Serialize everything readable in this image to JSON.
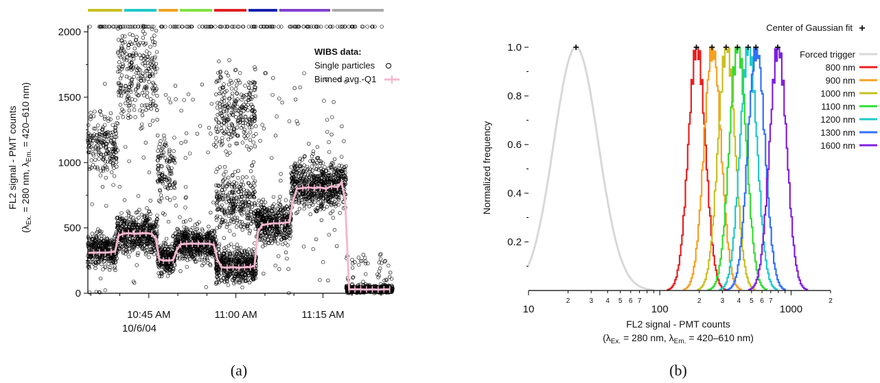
{
  "panel_a": {
    "caption": "(a)",
    "y_label_line1": "FL2 signal - PMT counts",
    "y_label_line2_prefix": "(λ",
    "y_label_sub1": "Ex.",
    "y_label_mid": " = 280 nm, λ",
    "y_label_sub2": "Em.",
    "y_label_suffix": " = 420–610 nm)",
    "legend_title": "WIBS data:",
    "legend_single": "Single particles",
    "legend_binned": "Binned avg.-Q1",
    "x_ticks": [
      "10:45 AM",
      "11:00 AM",
      "11:15 AM"
    ],
    "x_date": "10/6/04",
    "y_ticks": [
      "0",
      "500",
      "1000",
      "1500",
      "2000"
    ],
    "top_bar_colors": [
      "#c8c020",
      "#20c8c8",
      "#f0a020",
      "#80e040",
      "#e02020",
      "#1020b0",
      "#8040d0",
      "#aaaaaa"
    ]
  },
  "panel_b": {
    "caption": "(b)",
    "x_label_line1": "FL2 signal - PMT counts",
    "x_label_line2_prefix": "(λ",
    "x_label_sub1": "Ex.",
    "x_label_mid": " = 280 nm, λ",
    "x_label_sub2": "Em.",
    "x_label_suffix": " = 420–610 nm)",
    "y_label": "Normalized frequency",
    "gauss_label": "Center of Gaussian fit",
    "gauss_marker": "+",
    "y_ticks": [
      "0.2",
      "0.4",
      "0.6",
      "0.8",
      "1.0"
    ],
    "x_major_ticks": [
      "10",
      "100",
      "1000"
    ],
    "x_minor_labels": [
      "2",
      "3",
      "4",
      "5",
      "6",
      "7",
      "2",
      "3",
      "4",
      "5",
      "6",
      "7",
      "2"
    ]
  },
  "chart_data": [
    {
      "type": "scatter",
      "xlabel": "",
      "ylabel": "FL2 signal - PMT counts (λEx. = 280 nm, λEm. = 420–610 nm)",
      "ylim": [
        0,
        2050
      ],
      "x_ticks": [
        "10:45 AM",
        "11:00 AM",
        "11:15 AM"
      ],
      "x_range_minutes": [
        -10.5,
        42
      ],
      "x_reference": "10:45 AM 10/6/04",
      "series": [
        {
          "name": "Single particles",
          "style": "open-circle",
          "segments": [
            {
              "x_start": -10.5,
              "x_end": -5.5,
              "bands": [
                [
                  330,
                  60
                ],
                [
                  1120,
                  110
                ]
              ]
            },
            {
              "x_start": -5.5,
              "x_end": 1.5,
              "bands": [
                [
                  455,
                  70
                ],
                [
                  1700,
                  170
                ]
              ]
            },
            {
              "x_start": 1.5,
              "x_end": 4.5,
              "bands": [
                [
                  260,
                  60
                ],
                [
                  950,
                  110
                ]
              ]
            },
            {
              "x_start": 4.5,
              "x_end": 11.5,
              "bands": [
                [
                  380,
                  60
                ]
              ]
            },
            {
              "x_start": 11.5,
              "x_end": 18.5,
              "bands": [
                [
                  210,
                  60
                ],
                [
                  700,
                  110
                ],
                [
                  1400,
                  170
                ]
              ]
            },
            {
              "x_start": 18.5,
              "x_end": 24.5,
              "bands": [
                [
                  540,
                  70
                ]
              ]
            },
            {
              "x_start": 24.5,
              "x_end": 34,
              "bands": [
                [
                  830,
                  90
                ]
              ]
            },
            {
              "x_start": 34,
              "x_end": 42,
              "bands": [
                [
                  30,
                  15
                ]
              ]
            }
          ]
        },
        {
          "name": "Binned avg.-Q1",
          "color": "#f5b8d0",
          "x": [
            -10.5,
            -9.5,
            -8.5,
            -7.5,
            -6.5,
            -5.8,
            -5.2,
            -4.5,
            -3.5,
            -2.5,
            -1.5,
            -0.5,
            0.5,
            1.2,
            1.8,
            2.5,
            3.5,
            4.2,
            4.8,
            5.5,
            6.5,
            7.5,
            8.5,
            9.5,
            10.5,
            11.2,
            11.8,
            12.5,
            13.5,
            14.5,
            15.5,
            16.5,
            17.5,
            18.2,
            18.8,
            19.5,
            20.5,
            21.5,
            22.5,
            23.5,
            24.2,
            24.8,
            25.5,
            26.5,
            27.5,
            28.5,
            29.5,
            30.5,
            31.5,
            32.5,
            33.2,
            33.8,
            34.5,
            35.5,
            36.5,
            37.5,
            38.5,
            39.5,
            40.5,
            41.5
          ],
          "y": [
            310,
            310,
            312,
            310,
            315,
            320,
            440,
            455,
            460,
            455,
            458,
            460,
            455,
            420,
            260,
            250,
            250,
            255,
            330,
            375,
            378,
            380,
            378,
            380,
            378,
            370,
            260,
            200,
            195,
            200,
            195,
            200,
            200,
            210,
            470,
            520,
            530,
            535,
            535,
            540,
            545,
            700,
            800,
            805,
            810,
            805,
            810,
            800,
            820,
            810,
            850,
            720,
            30,
            30,
            30,
            28,
            30,
            28,
            30,
            30
          ]
        }
      ]
    },
    {
      "type": "line",
      "xlabel": "FL2 signal - PMT counts (λEx. = 280 nm, λEm. = 420–610 nm)",
      "ylabel": "Normalized frequency",
      "x_scale": "log",
      "xlim": [
        10,
        2000
      ],
      "ylim": [
        0,
        1.0
      ],
      "legend_position": "right",
      "series": [
        {
          "name": "Forced trigger",
          "color": "#d8d8d8",
          "center": 23,
          "width_log10": 0.17
        },
        {
          "name": "800 nm",
          "color": "#e82020",
          "center": 190,
          "width_log10": 0.065
        },
        {
          "name": "900 nm",
          "color": "#f5a020",
          "center": 250,
          "width_log10": 0.065
        },
        {
          "name": "1000 nm",
          "color": "#c8c020",
          "center": 320,
          "width_log10": 0.065
        },
        {
          "name": "1100 nm",
          "color": "#30dd30",
          "center": 390,
          "width_log10": 0.065
        },
        {
          "name": "1200 nm",
          "color": "#20c8c8",
          "center": 470,
          "width_log10": 0.065
        },
        {
          "name": "1300 nm",
          "color": "#3070ff",
          "center": 540,
          "width_log10": 0.065
        },
        {
          "name": "1600 nm",
          "color": "#8020e0",
          "center": 790,
          "width_log10": 0.065
        }
      ],
      "gaussian_centers": [
        23,
        190,
        250,
        320,
        390,
        470,
        540,
        790
      ]
    }
  ]
}
